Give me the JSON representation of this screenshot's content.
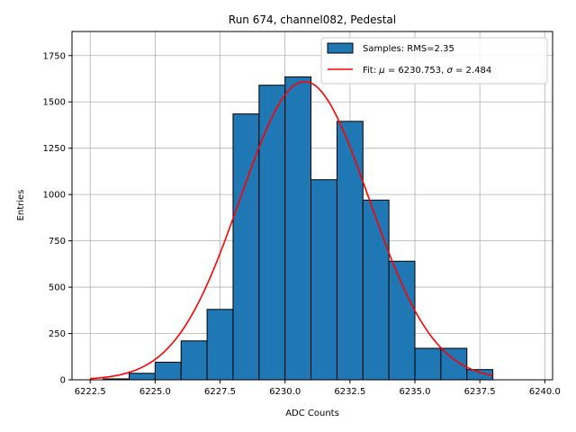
{
  "chart_data": {
    "type": "bar",
    "title": "Run 674, channel082, Pedestal",
    "xlabel": "ADC Counts",
    "ylabel": "Entries",
    "xlim": [
      6221.8,
      6240.3
    ],
    "ylim": [
      0,
      1880
    ],
    "xticks": [
      6222.5,
      6225.0,
      6227.5,
      6230.0,
      6232.5,
      6235.0,
      6237.5,
      6240.0
    ],
    "xtick_labels": [
      "6222.5",
      "6225.0",
      "6227.5",
      "6230.0",
      "6232.5",
      "6235.0",
      "6237.5",
      "6240.0"
    ],
    "yticks": [
      0,
      250,
      500,
      750,
      1000,
      1250,
      1500,
      1750
    ],
    "ytick_labels": [
      "0",
      "250",
      "500",
      "750",
      "1000",
      "1250",
      "1500",
      "1750"
    ],
    "grid": true,
    "legend_position": "top-right",
    "histogram": {
      "name": "Samples: RMS=2.35",
      "color": "#1f77b4",
      "bins": [
        {
          "left": 6223.0,
          "right": 6224.0,
          "count": 5
        },
        {
          "left": 6224.0,
          "right": 6225.0,
          "count": 35
        },
        {
          "left": 6225.0,
          "right": 6226.0,
          "count": 95
        },
        {
          "left": 6226.0,
          "right": 6227.0,
          "count": 210
        },
        {
          "left": 6227.0,
          "right": 6228.0,
          "count": 380
        },
        {
          "left": 6228.0,
          "right": 6229.0,
          "count": 1435
        },
        {
          "left": 6229.0,
          "right": 6230.0,
          "count": 1590
        },
        {
          "left": 6230.0,
          "right": 6231.0,
          "count": 1635
        },
        {
          "left": 6231.0,
          "right": 6232.0,
          "count": 1080
        },
        {
          "left": 6232.0,
          "right": 6233.0,
          "count": 1395
        },
        {
          "left": 6233.0,
          "right": 6234.0,
          "count": 970
        },
        {
          "left": 6234.0,
          "right": 6235.0,
          "count": 640
        },
        {
          "left": 6235.0,
          "right": 6236.0,
          "count": 170
        },
        {
          "left": 6236.0,
          "right": 6237.0,
          "count": 170
        },
        {
          "left": 6237.0,
          "right": 6238.0,
          "count": 55
        }
      ]
    },
    "fit": {
      "name": "Fit: μ = 6230.753, σ = 2.484",
      "label_prefix": "Fit: ",
      "mu_symbol": "μ",
      "mu_text": " = 6230.753, ",
      "sigma_symbol": "σ",
      "sigma_text": " = 2.484",
      "color": "#ff0000",
      "mu": 6230.753,
      "sigma": 2.484,
      "amplitude": 1610,
      "x_range": [
        6222.5,
        6238.0
      ]
    }
  }
}
